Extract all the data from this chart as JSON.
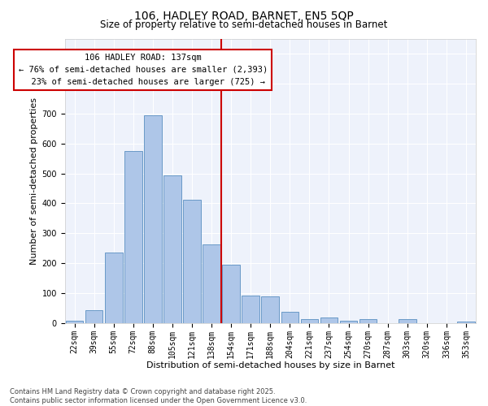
{
  "title_line1": "106, HADLEY ROAD, BARNET, EN5 5QP",
  "title_line2": "Size of property relative to semi-detached houses in Barnet",
  "xlabel": "Distribution of semi-detached houses by size in Barnet",
  "ylabel": "Number of semi-detached properties",
  "categories": [
    "22sqm",
    "39sqm",
    "55sqm",
    "72sqm",
    "88sqm",
    "105sqm",
    "121sqm",
    "138sqm",
    "154sqm",
    "171sqm",
    "188sqm",
    "204sqm",
    "221sqm",
    "237sqm",
    "254sqm",
    "270sqm",
    "287sqm",
    "303sqm",
    "320sqm",
    "336sqm",
    "353sqm"
  ],
  "values": [
    8,
    42,
    237,
    575,
    693,
    493,
    413,
    263,
    196,
    93,
    88,
    37,
    13,
    18,
    8,
    13,
    0,
    13,
    0,
    0,
    5
  ],
  "bar_color": "#aec6e8",
  "bar_edge_color": "#5a8fc0",
  "vline_color": "#cc0000",
  "annotation_text": "106 HADLEY ROAD: 137sqm\n← 76% of semi-detached houses are smaller (2,393)\n  23% of semi-detached houses are larger (725) →",
  "annotation_box_color": "#ffffff",
  "annotation_box_edge": "#cc0000",
  "ylim": [
    0,
    950
  ],
  "yticks": [
    0,
    100,
    200,
    300,
    400,
    500,
    600,
    700,
    800,
    900
  ],
  "background_color": "#eef2fb",
  "footer_text": "Contains HM Land Registry data © Crown copyright and database right 2025.\nContains public sector information licensed under the Open Government Licence v3.0.",
  "title_fontsize": 10,
  "subtitle_fontsize": 8.5,
  "xlabel_fontsize": 8,
  "ylabel_fontsize": 8,
  "tick_fontsize": 7,
  "annotation_fontsize": 7.5,
  "footer_fontsize": 6
}
